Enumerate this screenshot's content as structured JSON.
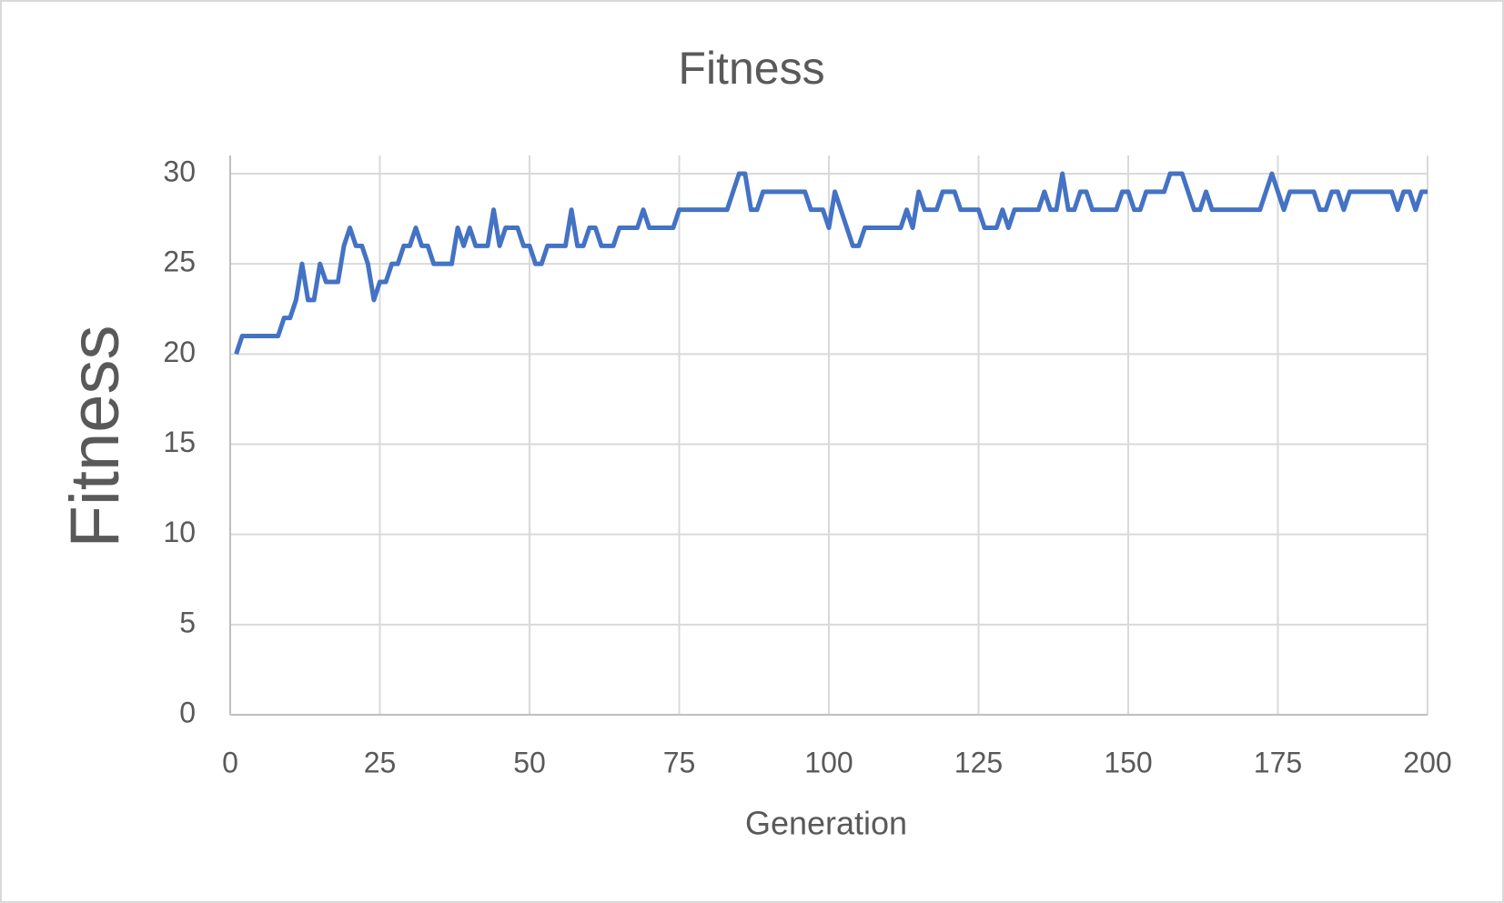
{
  "chart_data": {
    "type": "line",
    "title": "Fitness",
    "x_label": "Generation",
    "y_label": "Fitness",
    "color": "#4472c4",
    "grid": true,
    "x": [
      1,
      2,
      3,
      4,
      5,
      6,
      7,
      8,
      9,
      10,
      11,
      12,
      13,
      14,
      15,
      16,
      17,
      18,
      19,
      20,
      21,
      22,
      23,
      24,
      25,
      26,
      27,
      28,
      29,
      30,
      31,
      32,
      33,
      34,
      35,
      36,
      37,
      38,
      39,
      40,
      41,
      42,
      43,
      44,
      45,
      46,
      47,
      48,
      49,
      50,
      51,
      52,
      53,
      54,
      55,
      56,
      57,
      58,
      59,
      60,
      61,
      62,
      63,
      64,
      65,
      66,
      67,
      68,
      69,
      70,
      71,
      72,
      73,
      74,
      75,
      76,
      77,
      78,
      79,
      80,
      81,
      82,
      83,
      84,
      85,
      86,
      87,
      88,
      89,
      90,
      91,
      92,
      93,
      94,
      95,
      96,
      97,
      98,
      99,
      100,
      101,
      102,
      103,
      104,
      105,
      106,
      107,
      108,
      109,
      110,
      111,
      112,
      113,
      114,
      115,
      116,
      117,
      118,
      119,
      120,
      121,
      122,
      123,
      124,
      125,
      126,
      127,
      128,
      129,
      130,
      131,
      132,
      133,
      134,
      135,
      136,
      137,
      138,
      139,
      140,
      141,
      142,
      143,
      144,
      145,
      146,
      147,
      148,
      149,
      150,
      151,
      152,
      153,
      154,
      155,
      156,
      157,
      158,
      159,
      160,
      161,
      162,
      163,
      164,
      165,
      166,
      167,
      168,
      169,
      170,
      171,
      172,
      173,
      174,
      175,
      176,
      177,
      178,
      179,
      180,
      181,
      182,
      183,
      184,
      185,
      186,
      187,
      188,
      189,
      190,
      191,
      192,
      193,
      194,
      195,
      196,
      197,
      198,
      199,
      200
    ],
    "values": [
      20,
      21,
      21,
      21,
      21,
      21,
      21,
      21,
      22,
      22,
      23,
      25,
      23,
      23,
      25,
      24,
      24,
      24,
      26,
      27,
      26,
      26,
      25,
      23,
      24,
      24,
      25,
      25,
      26,
      26,
      27,
      26,
      26,
      25,
      25,
      25,
      25,
      27,
      26,
      27,
      26,
      26,
      26,
      28,
      26,
      27,
      27,
      27,
      26,
      26,
      25,
      25,
      26,
      26,
      26,
      26,
      28,
      26,
      26,
      27,
      27,
      26,
      26,
      26,
      27,
      27,
      27,
      27,
      28,
      27,
      27,
      27,
      27,
      27,
      28,
      28,
      28,
      28,
      28,
      28,
      28,
      28,
      28,
      29,
      30,
      30,
      28,
      28,
      29,
      29,
      29,
      29,
      29,
      29,
      29,
      29,
      28,
      28,
      28,
      27,
      29,
      28,
      27,
      26,
      26,
      27,
      27,
      27,
      27,
      27,
      27,
      27,
      28,
      27,
      29,
      28,
      28,
      28,
      29,
      29,
      29,
      28,
      28,
      28,
      28,
      27,
      27,
      27,
      28,
      27,
      28,
      28,
      28,
      28,
      28,
      29,
      28,
      28,
      30,
      28,
      28,
      29,
      29,
      28,
      28,
      28,
      28,
      28,
      29,
      29,
      28,
      28,
      29,
      29,
      29,
      29,
      30,
      30,
      30,
      29,
      28,
      28,
      29,
      28,
      28,
      28,
      28,
      28,
      28,
      28,
      28,
      28,
      29,
      30,
      29,
      28,
      29,
      29,
      29,
      29,
      29,
      28,
      28,
      29,
      29,
      28,
      29,
      29,
      29,
      29,
      29,
      29,
      29,
      29,
      28,
      29,
      29,
      28,
      29,
      29
    ],
    "xlim": [
      0,
      200
    ],
    "xticks": [
      0,
      25,
      50,
      75,
      100,
      125,
      150,
      175,
      200
    ],
    "ylim": [
      0,
      30
    ],
    "yticks": [
      0,
      5,
      10,
      15,
      20,
      25,
      30
    ]
  }
}
